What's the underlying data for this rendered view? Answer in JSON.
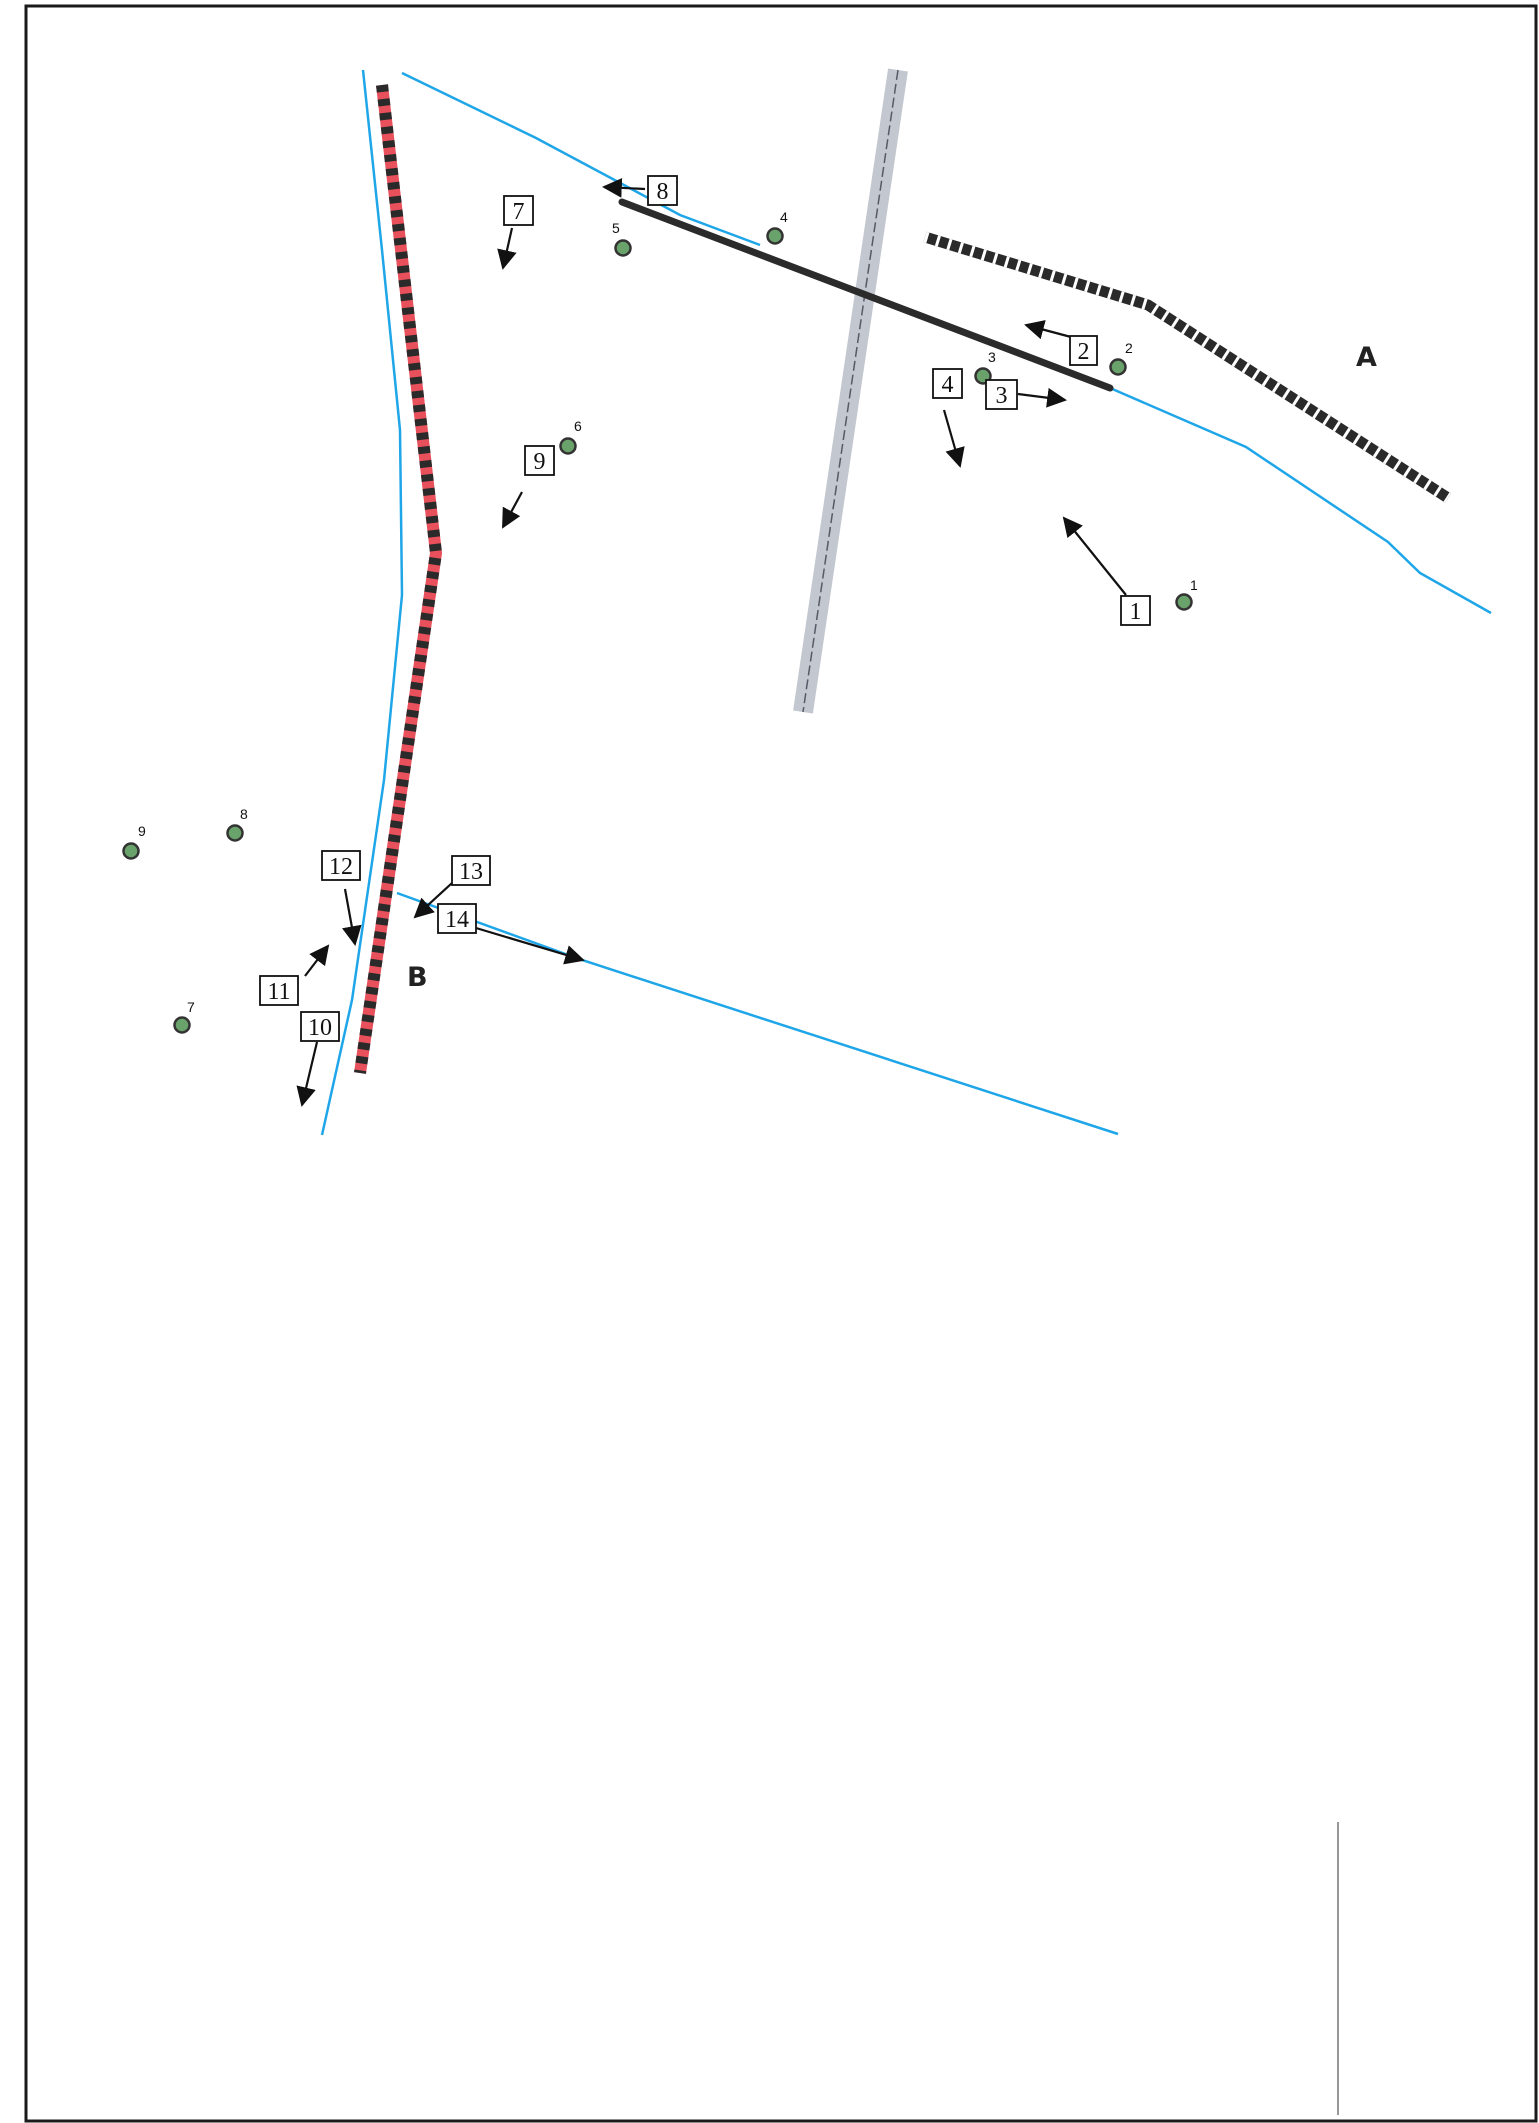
{
  "map": {
    "zone_labels": [
      {
        "id": "A",
        "text": "A"
      },
      {
        "id": "B",
        "text": "B"
      }
    ],
    "wells": [
      {
        "id": "1",
        "label": "1"
      },
      {
        "id": "2",
        "label": "2"
      },
      {
        "id": "3",
        "label": "3"
      },
      {
        "id": "4",
        "label": "4"
      },
      {
        "id": "5",
        "label": "5"
      },
      {
        "id": "6",
        "label": "6"
      },
      {
        "id": "7",
        "label": "7"
      },
      {
        "id": "8",
        "label": "8"
      },
      {
        "id": "9",
        "label": "9"
      }
    ],
    "callouts": [
      {
        "id": "1",
        "label": "1"
      },
      {
        "id": "2",
        "label": "2"
      },
      {
        "id": "3",
        "label": "3"
      },
      {
        "id": "4",
        "label": "4"
      },
      {
        "id": "7",
        "label": "7"
      },
      {
        "id": "8",
        "label": "8"
      },
      {
        "id": "9",
        "label": "9"
      },
      {
        "id": "10",
        "label": "10"
      },
      {
        "id": "11",
        "label": "11"
      },
      {
        "id": "12",
        "label": "12"
      },
      {
        "id": "13",
        "label": "13"
      },
      {
        "id": "14",
        "label": "14"
      }
    ],
    "colors": {
      "stream": "#1fa6e8",
      "road": "#c3c7cf",
      "road_centerline": "#555a66",
      "fence_red": "#e8505b",
      "fence_dark": "#2a2a2a",
      "rail_dark": "#2b2b2b",
      "well_fill": "#6aa26b",
      "well_stroke": "#333333",
      "frame": "#1a1a1a"
    }
  }
}
